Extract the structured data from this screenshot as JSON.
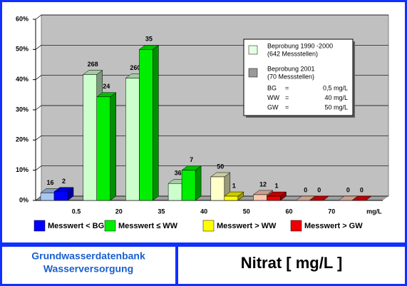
{
  "chart_data": {
    "type": "bar3d",
    "footer_left": [
      "Grundwasserdatenbank",
      "Wasserversorgung"
    ],
    "footer_right": "Nitrat [ mg/L ]",
    "categories": [
      "0.5",
      "20",
      "35",
      "40",
      "50",
      "60",
      "70",
      "mg/L"
    ],
    "ylim": [
      0,
      60
    ],
    "yticks": [
      {
        "value": 0,
        "label": "0%"
      },
      {
        "value": 10,
        "label": "10%"
      },
      {
        "value": 20,
        "label": "20%"
      },
      {
        "value": 30,
        "label": "30%"
      },
      {
        "value": 40,
        "label": "40%"
      },
      {
        "value": 50,
        "label": "50%"
      },
      {
        "value": 60,
        "label": "60%"
      }
    ],
    "grid": true,
    "series": [
      {
        "name": "Beprobung 1990 -2000",
        "note": "(642 Messstellen)",
        "color": "#e4ffe4",
        "colors": [
          "#a8c8f0",
          "#ccffcc",
          "#ccffcc",
          "#ccffcc",
          "#ffffc8",
          "#ffc8b0",
          "#ffc8b0",
          "#ffc8b0"
        ],
        "values": [
          2.5,
          41.7,
          40.5,
          5.6,
          7.8,
          1.9,
          0,
          0
        ],
        "counts": [
          "16",
          "268",
          "260",
          "36",
          "50",
          "12",
          "0",
          "0"
        ]
      },
      {
        "name": "Beprobung 2001",
        "note": "(70 Messstellen)",
        "color": "#999999",
        "colors": [
          "#0000ff",
          "#00ee00",
          "#00ee00",
          "#00ee00",
          "#ffff00",
          "#ee0000",
          "#ee0000",
          "#ee0000"
        ],
        "values": [
          2.9,
          34.3,
          50,
          10,
          1.4,
          1.4,
          0,
          0
        ],
        "counts": [
          "2",
          "24",
          "35",
          "7",
          "1",
          "1",
          "0",
          "0"
        ]
      }
    ],
    "limits": [
      {
        "abbr": "BG",
        "sign": "=",
        "value": "0,5 mg/L"
      },
      {
        "abbr": "WW",
        "sign": "=",
        "value": "40 mg/L"
      },
      {
        "abbr": "GW",
        "sign": "=",
        "value": "50 mg/L"
      }
    ],
    "classes": [
      {
        "label": "Messwert < BG",
        "color": "#0000ff"
      },
      {
        "label": "Messwert ≤ WW",
        "color": "#00ee00"
      },
      {
        "label": "Messwert > WW",
        "color": "#ffff00"
      },
      {
        "label": "Messwert > GW",
        "color": "#ee0000"
      }
    ]
  }
}
